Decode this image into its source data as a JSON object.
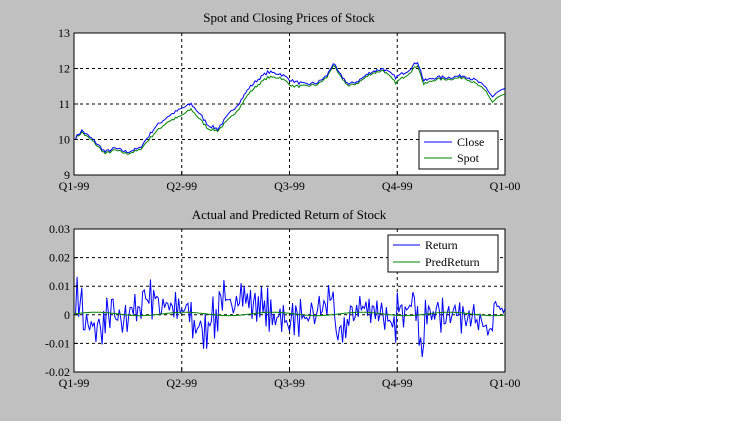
{
  "chart_data": [
    {
      "type": "line",
      "title": "Spot and Closing Prices of Stock",
      "xlabel": "",
      "ylabel": "",
      "x_tick_labels": [
        "Q1-99",
        "Q2-99",
        "Q3-99",
        "Q4-99",
        "Q1-00"
      ],
      "y_ticks": [
        9,
        10,
        11,
        12,
        13
      ],
      "ylim": [
        9,
        13
      ],
      "grid": true,
      "legend_position": "bottom-right",
      "colors": {
        "Close": "#0000ff",
        "Spot": "#008000"
      },
      "anchors": {
        "Close": [
          [
            0,
            10.0
          ],
          [
            5,
            10.25
          ],
          [
            12,
            10.0
          ],
          [
            20,
            9.65
          ],
          [
            26,
            9.75
          ],
          [
            34,
            9.65
          ],
          [
            42,
            9.75
          ],
          [
            52,
            10.35
          ],
          [
            60,
            10.65
          ],
          [
            68,
            10.85
          ],
          [
            75,
            11.0
          ],
          [
            80,
            10.75
          ],
          [
            86,
            10.4
          ],
          [
            92,
            10.3
          ],
          [
            100,
            10.75
          ],
          [
            106,
            11.05
          ],
          [
            112,
            11.45
          ],
          [
            118,
            11.7
          ],
          [
            124,
            11.9
          ],
          [
            132,
            11.85
          ],
          [
            140,
            11.65
          ],
          [
            148,
            11.55
          ],
          [
            156,
            11.6
          ],
          [
            162,
            11.8
          ],
          [
            166,
            12.15
          ],
          [
            170,
            11.85
          ],
          [
            176,
            11.55
          ],
          [
            182,
            11.65
          ],
          [
            190,
            11.9
          ],
          [
            198,
            12.0
          ],
          [
            206,
            11.75
          ],
          [
            214,
            11.95
          ],
          [
            220,
            12.2
          ],
          [
            224,
            11.65
          ],
          [
            232,
            11.75
          ],
          [
            240,
            11.75
          ],
          [
            250,
            11.8
          ],
          [
            258,
            11.65
          ],
          [
            264,
            11.45
          ],
          [
            268,
            11.2
          ],
          [
            272,
            11.35
          ],
          [
            276,
            11.4
          ]
        ],
        "Spot": [
          [
            0,
            10.0
          ],
          [
            5,
            10.2
          ],
          [
            12,
            9.95
          ],
          [
            20,
            9.6
          ],
          [
            26,
            9.7
          ],
          [
            34,
            9.6
          ],
          [
            42,
            9.7
          ],
          [
            52,
            10.2
          ],
          [
            60,
            10.5
          ],
          [
            68,
            10.65
          ],
          [
            75,
            10.85
          ],
          [
            80,
            10.6
          ],
          [
            86,
            10.3
          ],
          [
            92,
            10.25
          ],
          [
            100,
            10.6
          ],
          [
            106,
            10.9
          ],
          [
            112,
            11.3
          ],
          [
            118,
            11.55
          ],
          [
            124,
            11.75
          ],
          [
            132,
            11.75
          ],
          [
            140,
            11.5
          ],
          [
            148,
            11.5
          ],
          [
            156,
            11.55
          ],
          [
            162,
            11.75
          ],
          [
            166,
            12.1
          ],
          [
            170,
            11.8
          ],
          [
            176,
            11.5
          ],
          [
            182,
            11.6
          ],
          [
            190,
            11.85
          ],
          [
            198,
            11.95
          ],
          [
            206,
            11.6
          ],
          [
            214,
            11.85
          ],
          [
            220,
            12.1
          ],
          [
            224,
            11.55
          ],
          [
            232,
            11.7
          ],
          [
            240,
            11.7
          ],
          [
            250,
            11.75
          ],
          [
            258,
            11.55
          ],
          [
            264,
            11.35
          ],
          [
            268,
            11.05
          ],
          [
            272,
            11.2
          ],
          [
            276,
            11.25
          ]
        ]
      },
      "series": [
        {
          "name": "Close"
        },
        {
          "name": "Spot"
        }
      ]
    },
    {
      "type": "line",
      "title": "Actual and Predicted Return of Stock",
      "xlabel": "",
      "ylabel": "",
      "x_tick_labels": [
        "Q1-99",
        "Q2-99",
        "Q3-99",
        "Q4-99",
        "Q1-00"
      ],
      "y_ticks": [
        -0.02,
        -0.01,
        0,
        0.01,
        0.02,
        0.03
      ],
      "y_tick_labels": [
        "-0.02",
        "-0.01",
        "0",
        "0.01",
        "0.02",
        "0.03"
      ],
      "ylim": [
        -0.02,
        0.03
      ],
      "grid": true,
      "legend_position": "top-right",
      "colors": {
        "Return": "#0000ff",
        "PredReturn": "#008000"
      },
      "series": [
        {
          "name": "Return"
        },
        {
          "name": "PredReturn"
        }
      ]
    }
  ]
}
